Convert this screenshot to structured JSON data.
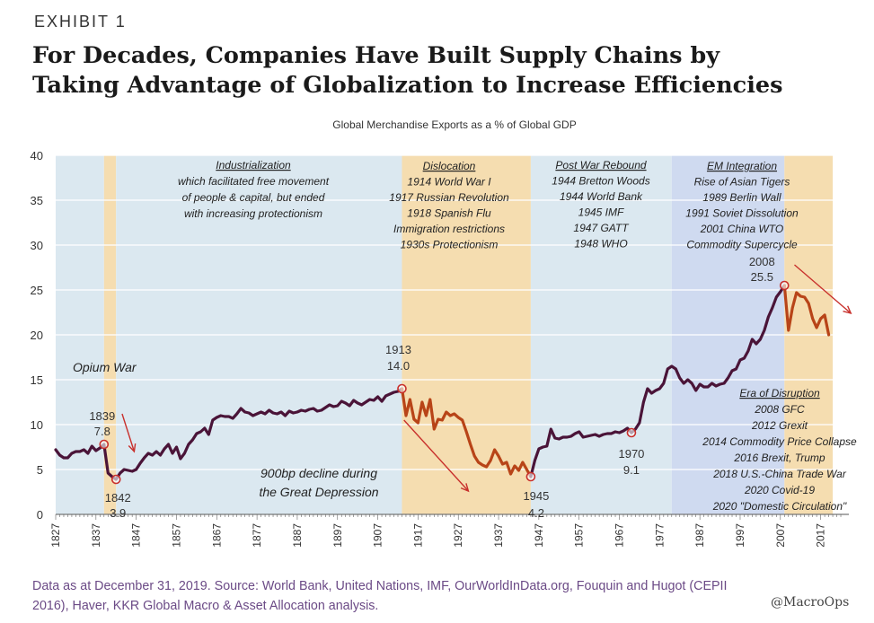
{
  "header": {
    "exhibit": "EXHIBIT 1",
    "title_line1": "For Decades, Companies Have Built Supply Chains by",
    "title_line2": "Taking Advantage of Globalization to Increase Efficiencies"
  },
  "chart_data": {
    "type": "line",
    "title": "Global Merchandise Exports as a % of Global GDP",
    "xlabel": "",
    "ylabel": "",
    "xlim": [
      1827,
      2024
    ],
    "ylim": [
      0,
      40
    ],
    "y_ticks": [
      0,
      5,
      10,
      15,
      20,
      25,
      30,
      35,
      40
    ],
    "x_ticks": [
      1827,
      1837,
      1847,
      1857,
      1867,
      1877,
      1887,
      1897,
      1907,
      1917,
      1927,
      1937,
      1947,
      1957,
      1967,
      1977,
      1987,
      1997,
      2007,
      2017
    ],
    "grid": true,
    "colors": {
      "line": "#4a1438",
      "decline": "#b84418",
      "arrow": "#c8302c",
      "blue_band": "#dbe8f0",
      "tan_band": "#f5ddb0",
      "blue_band_alt": "#cfdaf0",
      "source_text": "#6b4a86"
    },
    "bands": [
      {
        "from": 1827,
        "to": 1839,
        "tone": "blue"
      },
      {
        "from": 1839,
        "to": 1842,
        "tone": "tan"
      },
      {
        "from": 1842,
        "to": 1913,
        "tone": "blue"
      },
      {
        "from": 1913,
        "to": 1945,
        "tone": "tan"
      },
      {
        "from": 1945,
        "to": 1980,
        "tone": "blue"
      },
      {
        "from": 1980,
        "to": 2008,
        "tone": "blue_alt"
      },
      {
        "from": 2008,
        "to": 2020,
        "tone": "tan"
      }
    ],
    "series": [
      {
        "name": "Global Merchandise Exports as a % of Global GDP",
        "x": [
          1827,
          1828,
          1829,
          1830,
          1831,
          1832,
          1833,
          1834,
          1835,
          1836,
          1837,
          1838,
          1839,
          1840,
          1841,
          1842,
          1843,
          1844,
          1845,
          1846,
          1847,
          1848,
          1849,
          1850,
          1851,
          1852,
          1853,
          1854,
          1855,
          1856,
          1857,
          1858,
          1859,
          1860,
          1861,
          1862,
          1863,
          1864,
          1865,
          1866,
          1867,
          1868,
          1869,
          1870,
          1871,
          1872,
          1873,
          1874,
          1875,
          1876,
          1877,
          1878,
          1879,
          1880,
          1881,
          1882,
          1883,
          1884,
          1885,
          1886,
          1887,
          1888,
          1889,
          1890,
          1891,
          1892,
          1893,
          1894,
          1895,
          1896,
          1897,
          1898,
          1899,
          1900,
          1901,
          1902,
          1903,
          1904,
          1905,
          1906,
          1907,
          1908,
          1909,
          1910,
          1911,
          1912,
          1913
        ],
        "values": [
          7.2,
          6.6,
          6.3,
          6.3,
          6.8,
          7.0,
          7.0,
          7.2,
          6.8,
          7.6,
          7.1,
          7.4,
          7.8,
          4.6,
          4.2,
          3.9,
          4.6,
          5.0,
          4.9,
          4.8,
          5.0,
          5.7,
          6.3,
          6.8,
          6.6,
          7.0,
          6.6,
          7.3,
          7.8,
          6.8,
          7.5,
          6.2,
          6.8,
          7.8,
          8.3,
          9.0,
          9.2,
          9.6,
          8.9,
          10.5,
          10.8,
          11.0,
          10.9,
          10.9,
          10.7,
          11.2,
          11.8,
          11.4,
          11.3,
          11.0,
          11.2,
          11.4,
          11.2,
          11.6,
          11.3,
          11.2,
          11.4,
          11.0,
          11.5,
          11.3,
          11.4,
          11.6,
          11.5,
          11.7,
          11.8,
          11.5,
          11.6,
          11.9,
          12.2,
          12.0,
          12.1,
          12.6,
          12.4,
          12.1,
          12.7,
          12.4,
          12.2,
          12.5,
          12.8,
          12.7,
          13.1,
          12.6,
          13.2,
          13.4,
          13.6,
          13.7,
          14.0
        ]
      },
      {
        "name": "Dislocation period (1913-1945)",
        "x": [
          1913,
          1914,
          1915,
          1916,
          1917,
          1918,
          1919,
          1920,
          1921,
          1922,
          1923,
          1924,
          1925,
          1926,
          1927,
          1928,
          1929,
          1930,
          1931,
          1932,
          1933,
          1934,
          1935,
          1936,
          1937,
          1938,
          1939,
          1940,
          1941,
          1942,
          1943,
          1944,
          1945
        ],
        "values": [
          14.0,
          11.0,
          12.8,
          10.6,
          10.2,
          12.5,
          11.0,
          12.8,
          9.5,
          10.6,
          10.5,
          11.4,
          11.0,
          11.2,
          10.8,
          10.5,
          9.2,
          7.8,
          6.5,
          5.8,
          5.5,
          5.3,
          6.0,
          7.2,
          6.5,
          5.6,
          5.8,
          4.5,
          5.4,
          4.9,
          5.8,
          5.0,
          4.2
        ]
      },
      {
        "name": "Post-war series (1945-2008)",
        "x": [
          1945,
          1946,
          1947,
          1948,
          1949,
          1950,
          1951,
          1952,
          1953,
          1954,
          1955,
          1956,
          1957,
          1958,
          1959,
          1960,
          1961,
          1962,
          1963,
          1964,
          1965,
          1966,
          1967,
          1968,
          1969,
          1970,
          1971,
          1972,
          1973,
          1974,
          1975,
          1976,
          1977,
          1978,
          1979,
          1980,
          1981,
          1982,
          1983,
          1984,
          1985,
          1986,
          1987,
          1988,
          1989,
          1990,
          1991,
          1992,
          1993,
          1994,
          1995,
          1996,
          1997,
          1998,
          1999,
          2000,
          2001,
          2002,
          2003,
          2004,
          2005,
          2006,
          2007,
          2008
        ],
        "values": [
          4.2,
          6.0,
          7.3,
          7.5,
          7.6,
          9.5,
          8.5,
          8.4,
          8.6,
          8.6,
          8.7,
          9.0,
          9.2,
          8.6,
          8.7,
          8.8,
          8.9,
          8.7,
          8.9,
          9.0,
          9.0,
          9.2,
          9.1,
          9.3,
          9.6,
          9.1,
          9.5,
          10.2,
          12.5,
          14.0,
          13.5,
          13.8,
          14.0,
          14.6,
          16.2,
          16.5,
          16.2,
          15.2,
          14.6,
          15.0,
          14.6,
          13.8,
          14.5,
          14.2,
          14.2,
          14.6,
          14.3,
          14.5,
          14.6,
          15.2,
          16.0,
          16.2,
          17.2,
          17.4,
          18.2,
          19.5,
          19.0,
          19.5,
          20.5,
          22.0,
          23.0,
          24.2,
          24.8,
          25.5
        ]
      },
      {
        "name": "Era of Disruption (2008-2019)",
        "x": [
          2008,
          2009,
          2010,
          2011,
          2012,
          2013,
          2014,
          2015,
          2016,
          2017,
          2018,
          2019
        ],
        "values": [
          25.5,
          20.5,
          23.0,
          24.7,
          24.3,
          24.2,
          23.5,
          21.8,
          20.8,
          21.8,
          22.2,
          20.0
        ]
      }
    ],
    "annotations": {
      "industrialization": {
        "heading": "Industrialization",
        "lines": [
          "which facilitated free movement",
          "of people & capital, but ended",
          "with increasing protectionism"
        ]
      },
      "dislocation": {
        "heading": "Dislocation",
        "lines": [
          "1914 World War I",
          "1917 Russian Revolution",
          "1918 Spanish Flu",
          "Immigration restrictions",
          "1930s Protectionism"
        ]
      },
      "post_war": {
        "heading": "Post War Rebound",
        "lines": [
          "1944 Bretton Woods",
          "1944 World Bank",
          "1945 IMF",
          "1947 GATT",
          "1948 WHO"
        ]
      },
      "em_integration": {
        "heading": "EM Integration",
        "lines": [
          "Rise of Asian Tigers",
          "1989 Berlin Wall",
          "1991 Soviet Dissolution",
          "2001 China WTO",
          "Commodity Supercycle"
        ]
      },
      "era_disruption": {
        "heading": "Era of Disruption",
        "lines": [
          "2008 GFC",
          "2012 Grexit",
          "2014 Commodity Price Collapse",
          "2016 Brexit, Trump",
          "2018 U.S.-China Trade War",
          "2020 Covid-19",
          "2020 \"Domestic Circulation\""
        ]
      },
      "opium_war": "Opium War",
      "depression": [
        "900bp decline during",
        "the Great Depression"
      ]
    },
    "highlight_points": [
      {
        "year": 1839,
        "value": 7.8,
        "year_label": "1839",
        "value_label": "7.8"
      },
      {
        "year": 1842,
        "value": 3.9,
        "year_label": "1842",
        "value_label": "3.9"
      },
      {
        "year": 1913,
        "value": 14.0,
        "year_label": "1913",
        "value_label": "14.0"
      },
      {
        "year": 1945,
        "value": 4.2,
        "year_label": "1945",
        "value_label": "4.2"
      },
      {
        "year": 1970,
        "value": 9.1,
        "year_label": "1970",
        "value_label": "9.1"
      },
      {
        "year": 2008,
        "value": 25.5,
        "year_label": "2008",
        "value_label": "25.5"
      }
    ]
  },
  "footer": {
    "source_line1": "Data as at December 31, 2019. Source: World Bank, United Nations, IMF, OurWorldInData.org, Fouquin and Hugot (CEPII",
    "source_line2": "2016), Haver, KKR Global Macro & Asset Allocation analysis.",
    "watermark": "@MacroOps"
  }
}
